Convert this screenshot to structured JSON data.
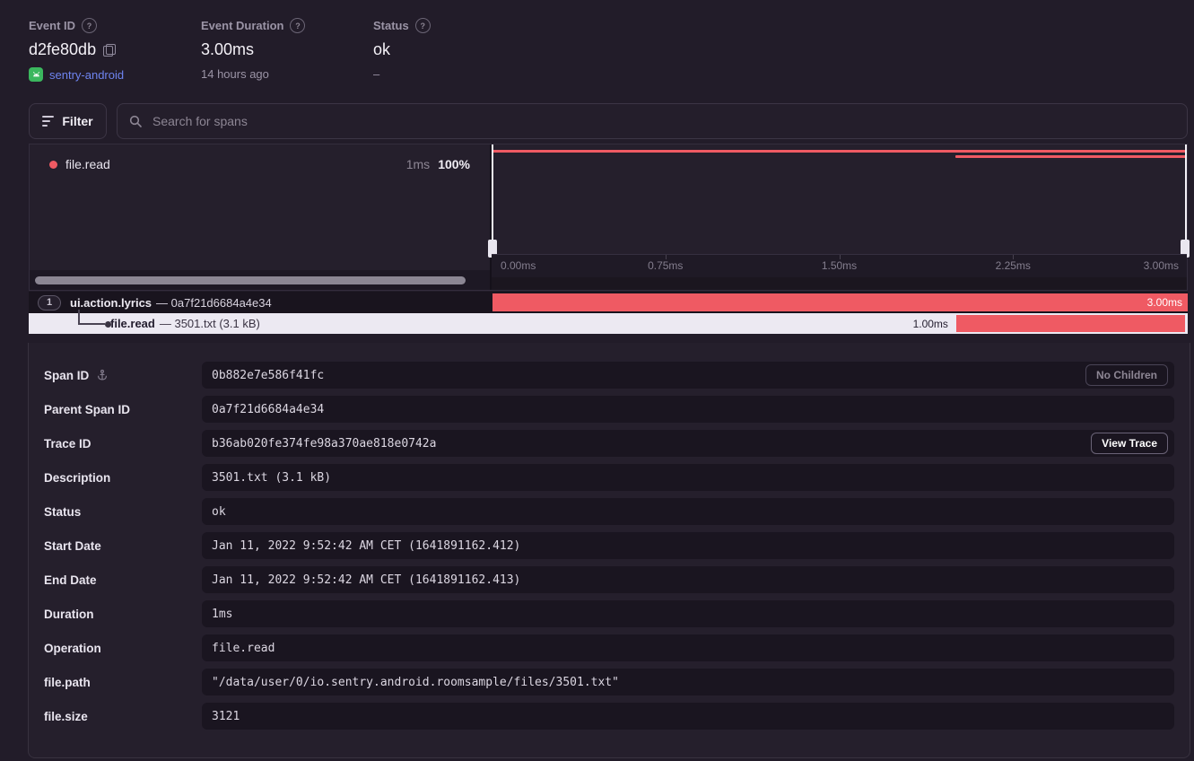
{
  "colors": {
    "accent_red": "#ef5a63",
    "link_blue": "#6e84f0",
    "android_green": "#3bb75e",
    "selected_row_bg": "#ece9f2"
  },
  "header": {
    "event_id": {
      "label": "Event ID",
      "value": "d2fe80db",
      "project": "sentry-android"
    },
    "event_duration": {
      "label": "Event Duration",
      "value": "3.00ms",
      "subtext": "14 hours ago"
    },
    "status": {
      "label": "Status",
      "value": "ok",
      "subtext": "–"
    }
  },
  "toolbar": {
    "filter_label": "Filter",
    "search_placeholder": "Search for spans"
  },
  "span_overview": {
    "op_name": "file.read",
    "duration": "1ms",
    "percent": "100%",
    "axis_ticks": [
      "0.00ms",
      "0.75ms",
      "1.50ms",
      "2.25ms",
      "3.00ms"
    ],
    "window_spans": [
      {
        "start_pct": 0,
        "width_pct": 100
      },
      {
        "start_pct": 66.7,
        "width_pct": 33.3
      }
    ]
  },
  "span_tree": {
    "parent": {
      "count": "1",
      "op": "ui.action.lyrics",
      "rest": "— 0a7f21d6684a4e34",
      "duration_label": "3.00ms",
      "bar_start_pct": 0,
      "bar_width_pct": 100
    },
    "child": {
      "op": "file.read",
      "rest": "— 3501.txt (3.1 kB)",
      "duration_label": "1.00ms",
      "bar_start_pct": 66.7,
      "bar_width_pct": 32.9
    }
  },
  "details": {
    "no_children_label": "No Children",
    "view_trace_label": "View Trace",
    "rows": [
      {
        "label": "Span ID",
        "value": "0b882e7e586f41fc"
      },
      {
        "label": "Parent Span ID",
        "value": "0a7f21d6684a4e34"
      },
      {
        "label": "Trace ID",
        "value": "b36ab020fe374fe98a370ae818e0742a"
      },
      {
        "label": "Description",
        "value": "3501.txt (3.1 kB)"
      },
      {
        "label": "Status",
        "value": "ok"
      },
      {
        "label": "Start Date",
        "value": "Jan 11, 2022 9:52:42 AM CET (1641891162.412)"
      },
      {
        "label": "End Date",
        "value": "Jan 11, 2022 9:52:42 AM CET (1641891162.413)"
      },
      {
        "label": "Duration",
        "value": "1ms"
      },
      {
        "label": "Operation",
        "value": "file.read"
      },
      {
        "label": "file.path",
        "value": "\"/data/user/0/io.sentry.android.roomsample/files/3501.txt\""
      },
      {
        "label": "file.size",
        "value": "3121"
      }
    ]
  }
}
